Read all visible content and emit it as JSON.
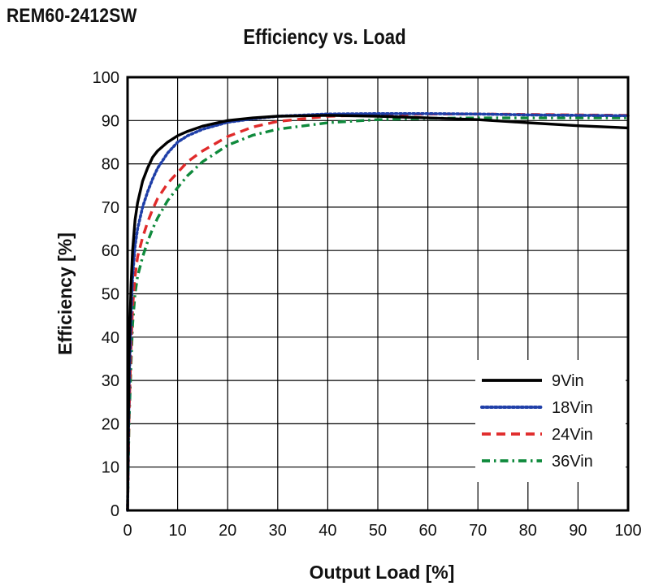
{
  "model": "REM60-2412SW",
  "chart_data": {
    "type": "line",
    "title": "Efficiency vs. Load",
    "xlabel": "Output Load [%]",
    "ylabel": "Efficiency [%]",
    "xlim": [
      0,
      100
    ],
    "ylim": [
      0,
      100
    ],
    "xticks": [
      "0",
      "10",
      "20",
      "30",
      "40",
      "50",
      "60",
      "70",
      "80",
      "90",
      "100"
    ],
    "yticks": [
      "0",
      "10",
      "20",
      "30",
      "40",
      "50",
      "60",
      "70",
      "80",
      "90",
      "100"
    ],
    "grid": true,
    "legend_position": "bottom-right",
    "series": [
      {
        "name": "9Vin",
        "color": "#000000",
        "dash": "solid",
        "x": [
          0,
          0.3,
          0.7,
          1,
          1.5,
          2,
          3,
          4,
          5,
          6,
          8,
          10,
          12,
          15,
          20,
          25,
          30,
          40,
          50,
          60,
          70,
          80,
          90,
          100
        ],
        "y": [
          0,
          35,
          52,
          60,
          67,
          71,
          76,
          79,
          81.5,
          83,
          85,
          86.5,
          87.5,
          88.7,
          90,
          90.6,
          91,
          91.2,
          91,
          90.6,
          90.2,
          89.5,
          88.8,
          88.3
        ]
      },
      {
        "name": "18Vin",
        "color": "#1f3fa8",
        "dash": "dotted",
        "x": [
          0,
          0.3,
          0.7,
          1,
          1.5,
          2,
          3,
          4,
          5,
          6,
          8,
          10,
          12,
          15,
          20,
          25,
          30,
          40,
          50,
          60,
          70,
          80,
          90,
          100
        ],
        "y": [
          0,
          28,
          45,
          54,
          61,
          65,
          70,
          73.5,
          76.5,
          79,
          82.5,
          85,
          86.5,
          88,
          89.6,
          90.4,
          91,
          91.5,
          91.6,
          91.6,
          91.5,
          91.3,
          91.2,
          91.1
        ]
      },
      {
        "name": "24Vin",
        "color": "#e02b2b",
        "dash": "dashed",
        "x": [
          0,
          0.3,
          0.7,
          1,
          1.5,
          2,
          3,
          4,
          5,
          6,
          8,
          10,
          12,
          15,
          20,
          25,
          30,
          40,
          50,
          60,
          70,
          80,
          90,
          100
        ],
        "y": [
          0,
          22,
          38,
          47,
          54,
          58.5,
          63,
          66.5,
          69.5,
          72,
          75.5,
          78,
          80.5,
          83,
          86.3,
          88.5,
          89.8,
          91,
          91.3,
          91.5,
          91.5,
          91.4,
          91.3,
          91.2
        ]
      },
      {
        "name": "36Vin",
        "color": "#0f8a3c",
        "dash": "dashdot",
        "x": [
          0,
          0.3,
          0.7,
          1,
          1.5,
          2,
          3,
          4,
          5,
          6,
          8,
          10,
          12,
          15,
          20,
          25,
          30,
          40,
          50,
          60,
          70,
          80,
          90,
          100
        ],
        "y": [
          0,
          20,
          34,
          43,
          50,
          54,
          58.5,
          62,
          65,
          67.5,
          71.5,
          74.5,
          77.3,
          80.5,
          84.3,
          86.6,
          88,
          89.5,
          90.2,
          90.5,
          90.6,
          90.6,
          90.6,
          90.6
        ]
      }
    ]
  }
}
